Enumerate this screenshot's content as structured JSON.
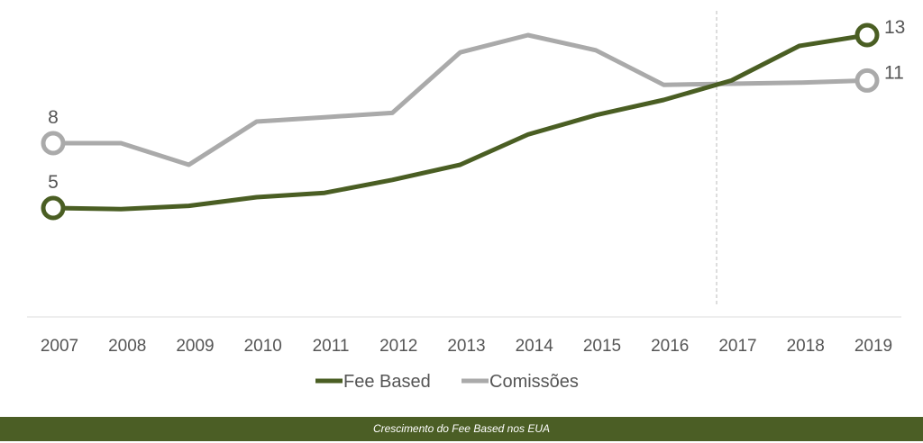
{
  "chart_data": {
    "type": "line",
    "title": "",
    "xlabel": "",
    "ylabel": "",
    "x": [
      "2007",
      "2008",
      "2009",
      "2010",
      "2011",
      "2012",
      "2013",
      "2014",
      "2015",
      "2016",
      "2017",
      "2018",
      "2019"
    ],
    "ylim": [
      0,
      14
    ],
    "grid": false,
    "legend_position": "bottom-center",
    "series": [
      {
        "name": "Fee Based",
        "color": "#4a5e23",
        "values": [
          5.0,
          4.95,
          5.1,
          5.5,
          5.7,
          6.3,
          7.0,
          8.4,
          9.3,
          10.0,
          10.9,
          12.5,
          13.0
        ],
        "start_label": "5",
        "end_label": "13"
      },
      {
        "name": "Comissões",
        "color": "#aaaaaa",
        "values": [
          8.0,
          8.0,
          7.0,
          9.0,
          9.2,
          9.4,
          12.2,
          13.0,
          12.3,
          10.7,
          10.75,
          10.8,
          10.9
        ],
        "start_label": "8",
        "end_label": "11"
      }
    ],
    "annotations": [
      {
        "type": "dashed-vertical-line",
        "x": "2017 (near crossing)"
      }
    ]
  },
  "footer": {
    "caption": "Crescimento do Fee Based nos EUA",
    "color": "#4b5e25"
  }
}
